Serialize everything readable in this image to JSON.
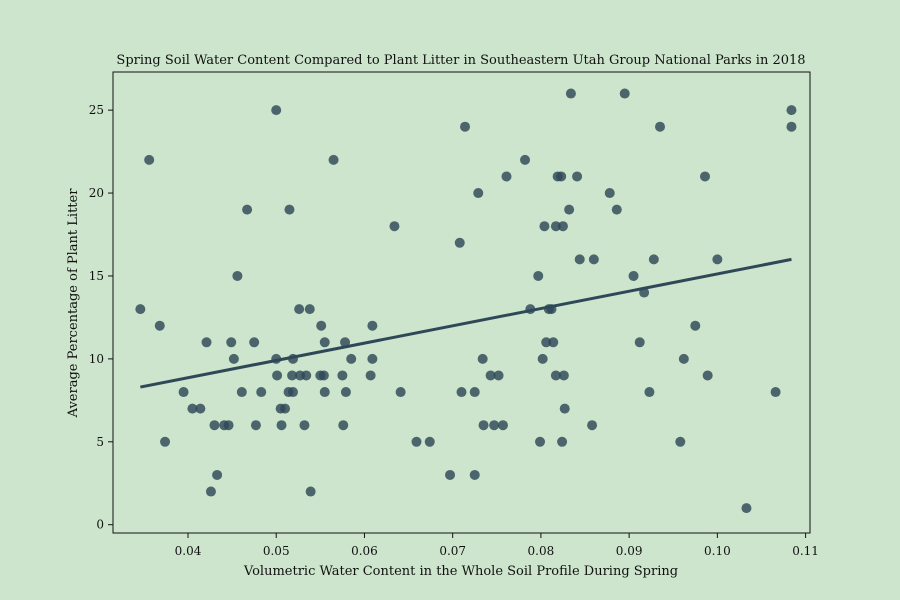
{
  "chart_data": {
    "type": "scatter",
    "title": "Spring Soil Water Content Compared to Plant Litter in Southeastern Utah Group National Parks in 2018",
    "xlabel": "Volumetric Water Content in the Whole Soil Profile During Spring",
    "ylabel": "Average Percentage of Plant Litter",
    "xlim": [
      0.0315,
      0.1105
    ],
    "ylim": [
      -0.5,
      27.3
    ],
    "xticks": [
      0.04,
      0.05,
      0.06,
      0.07,
      0.08,
      0.09,
      0.1,
      0.11
    ],
    "xtick_labels": [
      "0.04",
      "0.05",
      "0.06",
      "0.07",
      "0.08",
      "0.09",
      "0.10",
      "0.11"
    ],
    "yticks": [
      0,
      5,
      10,
      15,
      20,
      25
    ],
    "ytick_labels": [
      "0",
      "5",
      "10",
      "15",
      "20",
      "25"
    ],
    "grid": false,
    "colors": {
      "point": "#2f4858",
      "trend": "#2f4858",
      "background": "#cce5cc"
    },
    "points": [
      [
        0.0346,
        13
      ],
      [
        0.0356,
        22
      ],
      [
        0.0368,
        12
      ],
      [
        0.0374,
        5
      ],
      [
        0.0395,
        8
      ],
      [
        0.0405,
        7
      ],
      [
        0.0414,
        7
      ],
      [
        0.0421,
        11
      ],
      [
        0.0426,
        2
      ],
      [
        0.043,
        6
      ],
      [
        0.0433,
        3
      ],
      [
        0.0441,
        6
      ],
      [
        0.0446,
        6
      ],
      [
        0.0449,
        11
      ],
      [
        0.0452,
        10
      ],
      [
        0.0456,
        15
      ],
      [
        0.0461,
        8
      ],
      [
        0.0467,
        19
      ],
      [
        0.0475,
        11
      ],
      [
        0.0477,
        6
      ],
      [
        0.0483,
        8
      ],
      [
        0.05,
        25
      ],
      [
        0.05,
        10
      ],
      [
        0.0501,
        9
      ],
      [
        0.0505,
        7
      ],
      [
        0.0506,
        6
      ],
      [
        0.051,
        7
      ],
      [
        0.0514,
        8
      ],
      [
        0.0515,
        19
      ],
      [
        0.0518,
        9
      ],
      [
        0.0519,
        10
      ],
      [
        0.0519,
        8
      ],
      [
        0.0526,
        13
      ],
      [
        0.0527,
        9
      ],
      [
        0.0532,
        6
      ],
      [
        0.0534,
        9
      ],
      [
        0.0538,
        13
      ],
      [
        0.0539,
        2
      ],
      [
        0.055,
        9
      ],
      [
        0.0551,
        12
      ],
      [
        0.0554,
        9
      ],
      [
        0.0555,
        11
      ],
      [
        0.0555,
        8
      ],
      [
        0.0565,
        22
      ],
      [
        0.0575,
        9
      ],
      [
        0.0576,
        6
      ],
      [
        0.0578,
        11
      ],
      [
        0.0579,
        8
      ],
      [
        0.0585,
        10
      ],
      [
        0.0607,
        9
      ],
      [
        0.0609,
        12
      ],
      [
        0.0609,
        10
      ],
      [
        0.0634,
        18
      ],
      [
        0.0641,
        8
      ],
      [
        0.0659,
        5
      ],
      [
        0.0674,
        5
      ],
      [
        0.0697,
        3
      ],
      [
        0.0708,
        17
      ],
      [
        0.071,
        8
      ],
      [
        0.0714,
        24
      ],
      [
        0.0725,
        3
      ],
      [
        0.0725,
        8
      ],
      [
        0.0729,
        20
      ],
      [
        0.0734,
        10
      ],
      [
        0.0735,
        6
      ],
      [
        0.0743,
        9
      ],
      [
        0.0747,
        6
      ],
      [
        0.0752,
        9
      ],
      [
        0.0757,
        6
      ],
      [
        0.0761,
        21
      ],
      [
        0.0782,
        22
      ],
      [
        0.0788,
        13
      ],
      [
        0.0797,
        15
      ],
      [
        0.0799,
        5
      ],
      [
        0.0802,
        10
      ],
      [
        0.0804,
        18
      ],
      [
        0.0806,
        11
      ],
      [
        0.0809,
        13
      ],
      [
        0.0812,
        13
      ],
      [
        0.0814,
        11
      ],
      [
        0.0817,
        9
      ],
      [
        0.0817,
        18
      ],
      [
        0.0819,
        21
      ],
      [
        0.0823,
        21
      ],
      [
        0.0824,
        5
      ],
      [
        0.0825,
        18
      ],
      [
        0.0826,
        9
      ],
      [
        0.0827,
        7
      ],
      [
        0.0832,
        19
      ],
      [
        0.0834,
        26
      ],
      [
        0.0841,
        21
      ],
      [
        0.0844,
        16
      ],
      [
        0.0858,
        6
      ],
      [
        0.086,
        16
      ],
      [
        0.0878,
        20
      ],
      [
        0.0886,
        19
      ],
      [
        0.0895,
        26
      ],
      [
        0.0905,
        15
      ],
      [
        0.0912,
        11
      ],
      [
        0.0917,
        14
      ],
      [
        0.0923,
        8
      ],
      [
        0.0928,
        16
      ],
      [
        0.0935,
        24
      ],
      [
        0.0958,
        5
      ],
      [
        0.0962,
        10
      ],
      [
        0.0975,
        12
      ],
      [
        0.0986,
        21
      ],
      [
        0.0989,
        9
      ],
      [
        0.1,
        16
      ],
      [
        0.1033,
        1
      ],
      [
        0.1066,
        8
      ],
      [
        0.1084,
        25
      ],
      [
        0.1084,
        24
      ]
    ],
    "trendline": [
      [
        0.0346,
        8.3
      ],
      [
        0.1084,
        16.0
      ]
    ]
  }
}
